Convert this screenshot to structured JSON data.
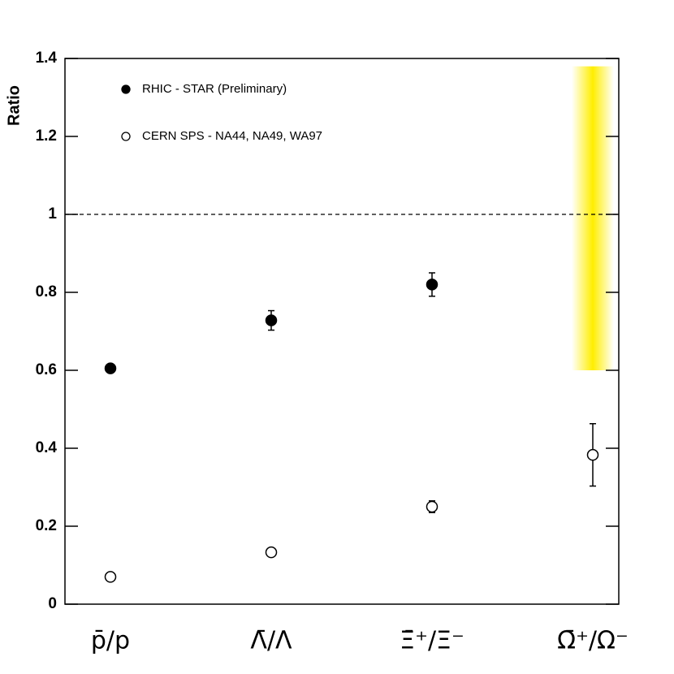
{
  "chart_data": {
    "type": "scatter",
    "y_label": "Ratio",
    "categories": [
      "p̄/p",
      "Λ̄/Λ",
      "Ξ̄⁺/Ξ⁻",
      "Ω̄⁺/Ω⁻"
    ],
    "series": [
      {
        "name": "RHIC - STAR (Preliminary)",
        "color": "#000000",
        "filled": true,
        "values": [
          0.605,
          0.728,
          0.82,
          null
        ],
        "errors": [
          0.01,
          0.025,
          0.03,
          null
        ]
      },
      {
        "name": "CERN SPS - NA44, NA49, WA97",
        "color": "#000000",
        "filled": false,
        "values": [
          0.07,
          0.133,
          0.25,
          0.383
        ],
        "errors": [
          0.005,
          0.005,
          0.015,
          0.08
        ]
      }
    ],
    "band": {
      "category": 3,
      "range": [
        0.6,
        1.38
      ],
      "color": "#ffee00"
    },
    "hline": 1,
    "ylim": [
      0,
      1.4
    ],
    "yticks": [
      0,
      0.2,
      0.4,
      0.6,
      0.8,
      1,
      1.2,
      1.4
    ]
  }
}
